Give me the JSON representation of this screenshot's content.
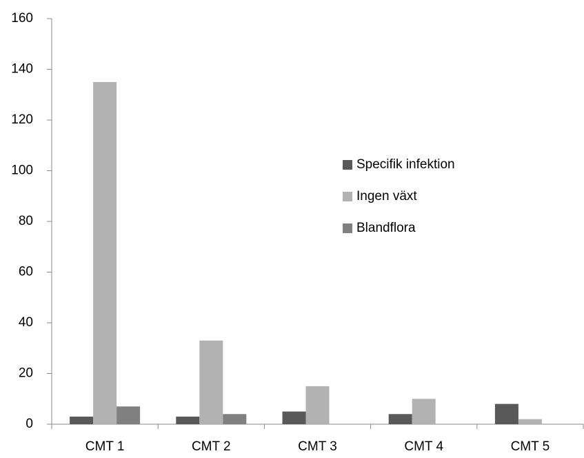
{
  "chart_data": {
    "type": "bar",
    "categories": [
      "CMT 1",
      "CMT 2",
      "CMT 3",
      "CMT 4",
      "CMT 5"
    ],
    "series": [
      {
        "name": "Specifik infektion",
        "color": "#595959",
        "values": [
          3,
          3,
          5,
          4,
          8
        ]
      },
      {
        "name": "Ingen växt",
        "color": "#b2b2b2",
        "values": [
          135,
          33,
          15,
          10,
          2
        ]
      },
      {
        "name": "Blandflora",
        "color": "#808080",
        "values": [
          7,
          4,
          0,
          0,
          0
        ]
      }
    ],
    "ylim": [
      0,
      160
    ],
    "yticks": [
      0,
      20,
      40,
      60,
      80,
      100,
      120,
      140,
      160
    ],
    "grid": false,
    "legend": "right"
  }
}
